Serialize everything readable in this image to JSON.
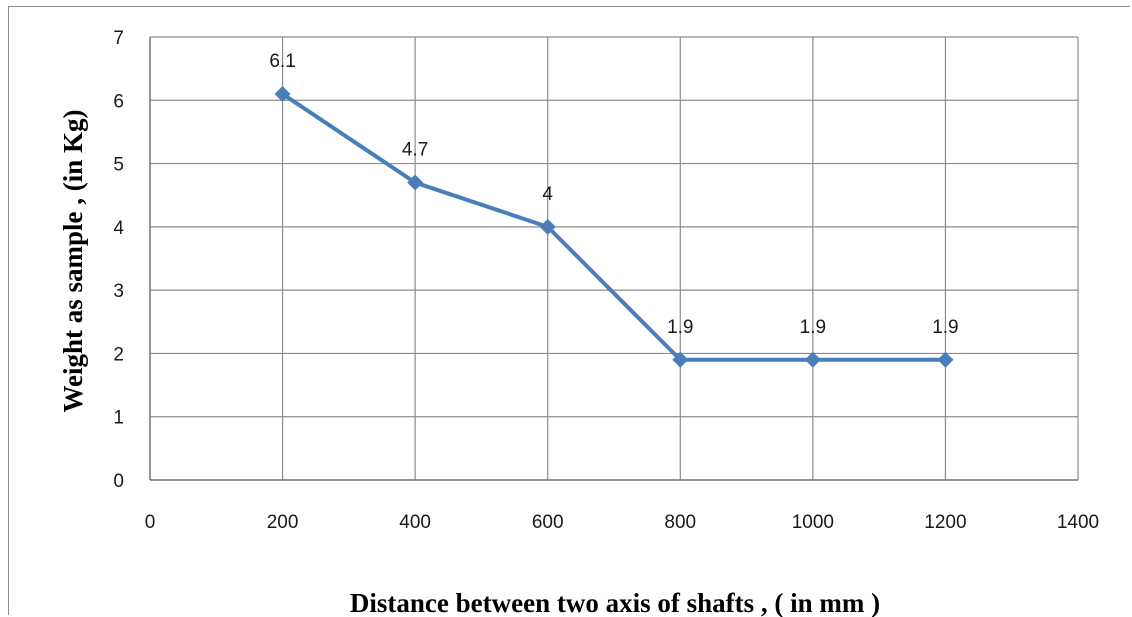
{
  "chart_data": {
    "type": "line",
    "xlabel": "Distance between two axis of  shafts , ( in mm )",
    "ylabel": "Weight as sample , (in Kg)",
    "xlim": [
      0,
      1400
    ],
    "ylim": [
      0,
      7
    ],
    "xticks": [
      0,
      200,
      400,
      600,
      800,
      1000,
      1200,
      1400
    ],
    "yticks": [
      0,
      1,
      2,
      3,
      4,
      5,
      6,
      7
    ],
    "grid": true,
    "legend": "none",
    "series": [
      {
        "color": "#4a7ebb",
        "marker": "diamond",
        "x": [
          200,
          400,
          600,
          800,
          1000,
          1200
        ],
        "y": [
          6.1,
          4.7,
          4,
          1.9,
          1.9,
          1.9
        ],
        "data_labels": [
          "6.1",
          "4.7",
          "4",
          "1.9",
          "1.9",
          "1.9"
        ]
      }
    ]
  }
}
